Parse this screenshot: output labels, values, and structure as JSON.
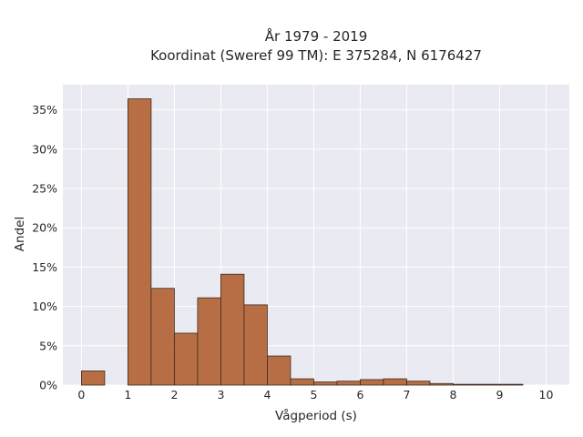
{
  "chart_data": {
    "type": "bar",
    "title": "År 1979 - 2019",
    "subtitle": "Koordinat (Sweref 99 TM): E 375284, N 6176427",
    "xlabel": "Vågperiod (s)",
    "ylabel": "Andel",
    "xlim": [
      -0.4,
      10.5
    ],
    "ylim": [
      0,
      38.2
    ],
    "x_ticks": [
      0,
      1,
      2,
      3,
      4,
      5,
      6,
      7,
      8,
      9,
      10
    ],
    "y_ticks": [
      0,
      5,
      10,
      15,
      20,
      25,
      30,
      35
    ],
    "y_tick_labels": [
      "0%",
      "5%",
      "10%",
      "15%",
      "20%",
      "25%",
      "30%",
      "35%"
    ],
    "bin_width": 0.5,
    "bins": [
      {
        "x0": 0.0,
        "value": 1.8
      },
      {
        "x0": 0.5,
        "value": 0.0
      },
      {
        "x0": 1.0,
        "value": 36.4
      },
      {
        "x0": 1.5,
        "value": 12.3
      },
      {
        "x0": 2.0,
        "value": 6.6
      },
      {
        "x0": 2.5,
        "value": 11.1
      },
      {
        "x0": 3.0,
        "value": 14.1
      },
      {
        "x0": 3.5,
        "value": 10.2
      },
      {
        "x0": 4.0,
        "value": 3.7
      },
      {
        "x0": 4.5,
        "value": 0.8
      },
      {
        "x0": 5.0,
        "value": 0.4
      },
      {
        "x0": 5.5,
        "value": 0.5
      },
      {
        "x0": 6.0,
        "value": 0.7
      },
      {
        "x0": 6.5,
        "value": 0.8
      },
      {
        "x0": 7.0,
        "value": 0.5
      },
      {
        "x0": 7.5,
        "value": 0.2
      },
      {
        "x0": 8.0,
        "value": 0.1
      },
      {
        "x0": 8.5,
        "value": 0.1
      },
      {
        "x0": 9.0,
        "value": 0.1
      }
    ],
    "grid": true,
    "colors": {
      "bar_fill": "#b5673a",
      "bar_edge": "#3a2a20",
      "plot_bg": "#eaeaf2",
      "grid": "#ffffff",
      "text": "#262626"
    }
  }
}
